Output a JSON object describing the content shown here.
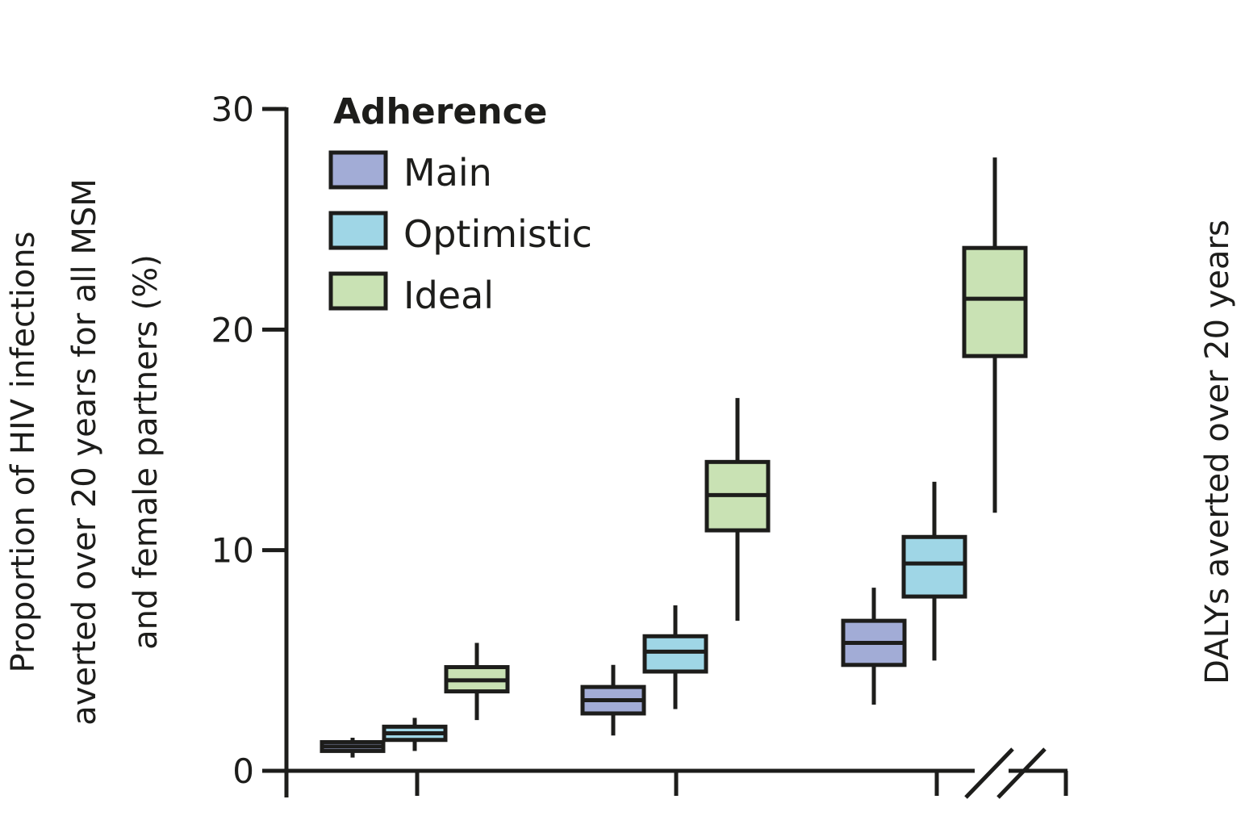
{
  "chart_data": {
    "type": "box",
    "ylabel_lines": [
      "Proportion of HIV infections",
      "averted over 20 years for all MSM",
      "and female partners (%)"
    ],
    "ylabel_right": "DALYs averted over 20 years",
    "ylim": [
      0,
      30
    ],
    "y_ticks": [
      0,
      10,
      20,
      30
    ],
    "y_tick_labels": [
      "0",
      "10",
      "20",
      "30"
    ],
    "legend": {
      "title": "Adherence",
      "position": "top-left"
    },
    "x_axis_break": true,
    "groups": 3,
    "series": [
      {
        "name": "Main",
        "color": "#a2acd6",
        "boxes": [
          {
            "group": 1,
            "min": 0.6,
            "q1": 0.9,
            "median": 1.1,
            "q3": 1.3,
            "max": 1.5
          },
          {
            "group": 2,
            "min": 1.6,
            "q1": 2.6,
            "median": 3.2,
            "q3": 3.8,
            "max": 4.8
          },
          {
            "group": 3,
            "min": 3.0,
            "q1": 4.8,
            "median": 5.8,
            "q3": 6.8,
            "max": 8.3
          }
        ]
      },
      {
        "name": "Optimistic",
        "color": "#9fd6e6",
        "boxes": [
          {
            "group": 1,
            "min": 0.9,
            "q1": 1.4,
            "median": 1.7,
            "q3": 2.0,
            "max": 2.4
          },
          {
            "group": 2,
            "min": 2.8,
            "q1": 4.5,
            "median": 5.4,
            "q3": 6.1,
            "max": 7.5
          },
          {
            "group": 3,
            "min": 5.0,
            "q1": 7.9,
            "median": 9.4,
            "q3": 10.6,
            "max": 13.1
          }
        ]
      },
      {
        "name": "Ideal",
        "color": "#c9e2b4",
        "boxes": [
          {
            "group": 1,
            "min": 2.3,
            "q1": 3.6,
            "median": 4.1,
            "q3": 4.7,
            "max": 5.8
          },
          {
            "group": 2,
            "min": 6.8,
            "q1": 10.9,
            "median": 12.5,
            "q3": 14.0,
            "max": 16.9
          },
          {
            "group": 3,
            "min": 11.7,
            "q1": 18.8,
            "median": 21.4,
            "q3": 23.7,
            "max": 27.8
          }
        ]
      }
    ]
  }
}
